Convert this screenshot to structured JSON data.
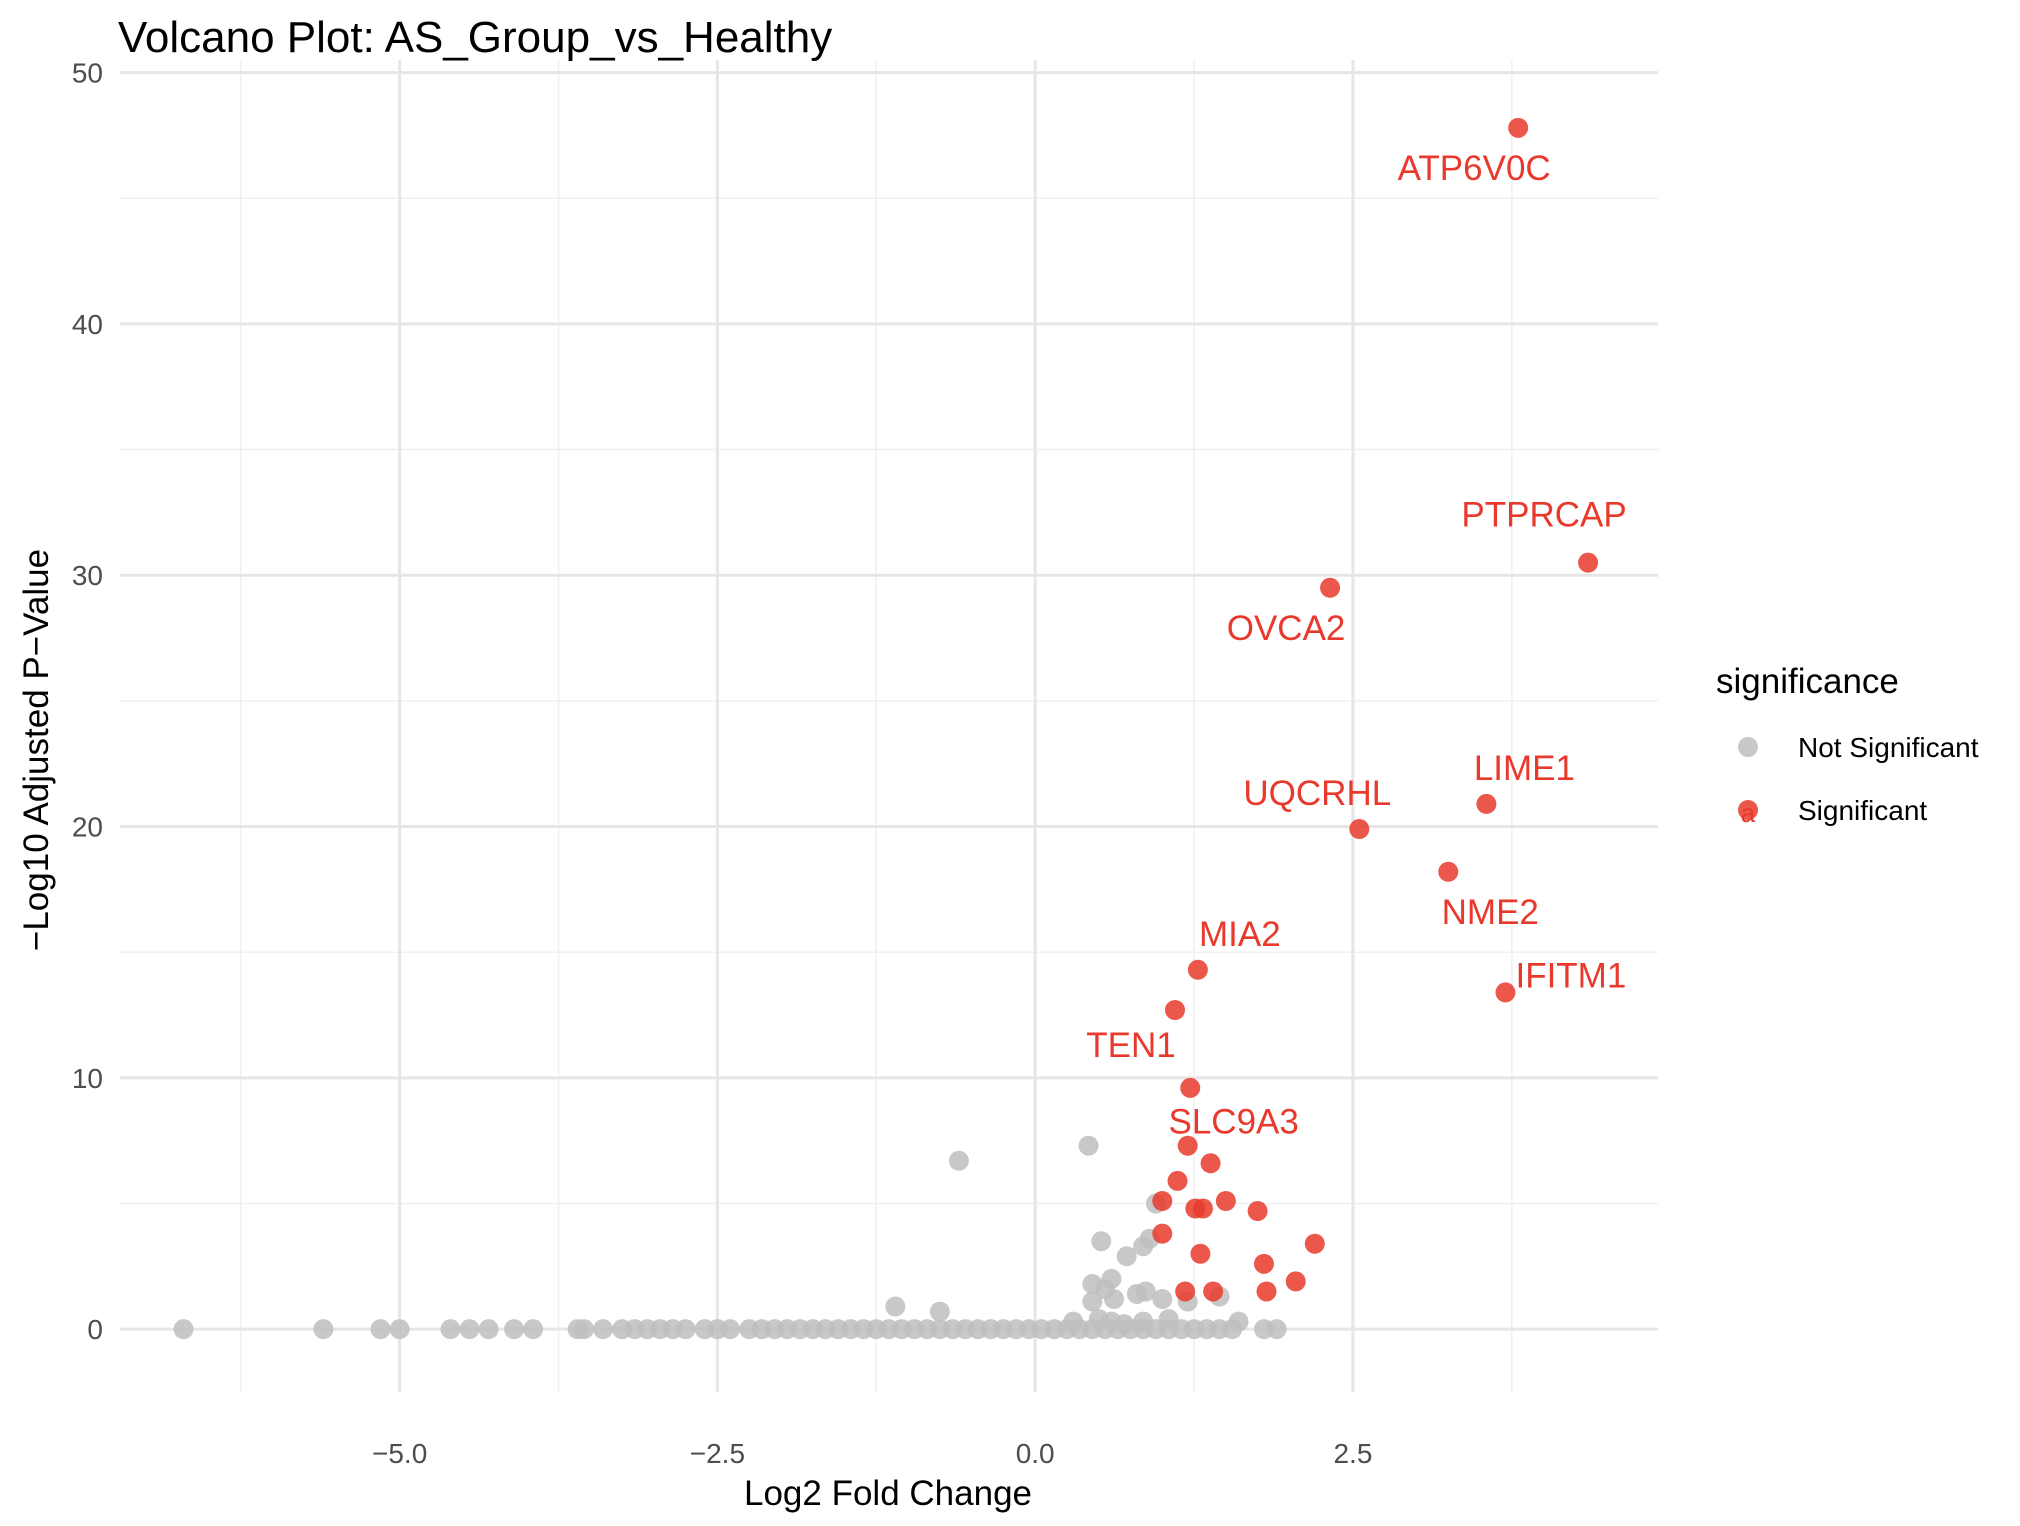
{
  "chart_data": {
    "type": "scatter",
    "title": "Volcano Plot: AS_Group_vs_Healthy",
    "xlabel": "Log2 Fold Change",
    "ylabel": "−Log10 Adjusted P−Value",
    "xlim": [
      -7.2,
      4.9
    ],
    "ylim": [
      -2.5,
      50.5
    ],
    "x_ticks": [
      -5.0,
      -2.5,
      0.0,
      2.5
    ],
    "x_tick_labels": [
      "−5.0",
      "−2.5",
      "0.0",
      "2.5"
    ],
    "y_ticks": [
      0,
      10,
      20,
      30,
      40,
      50
    ],
    "y_tick_labels": [
      "0",
      "10",
      "20",
      "30",
      "40",
      "50"
    ],
    "grid": true,
    "legend": {
      "title": "significance",
      "position": "right",
      "entries": [
        {
          "name": "Not Significant",
          "color": "#bebebe"
        },
        {
          "name": "Significant",
          "color": "#e8392c"
        }
      ]
    },
    "series": [
      {
        "name": "Not Significant",
        "color": "#bebebe",
        "points": [
          [
            -6.7,
            0
          ],
          [
            -5.6,
            0
          ],
          [
            -5.15,
            0
          ],
          [
            -5.0,
            0
          ],
          [
            -4.6,
            0
          ],
          [
            -4.45,
            0
          ],
          [
            -4.3,
            0
          ],
          [
            -4.1,
            0
          ],
          [
            -3.95,
            0
          ],
          [
            -3.6,
            0
          ],
          [
            -3.55,
            0
          ],
          [
            -3.4,
            0
          ],
          [
            -3.25,
            0
          ],
          [
            -3.15,
            0
          ],
          [
            -3.05,
            0
          ],
          [
            -2.95,
            0
          ],
          [
            -2.85,
            0
          ],
          [
            -2.75,
            0
          ],
          [
            -2.6,
            0
          ],
          [
            -2.5,
            0
          ],
          [
            -2.4,
            0
          ],
          [
            -2.25,
            0
          ],
          [
            -2.15,
            0
          ],
          [
            -2.05,
            0
          ],
          [
            -1.95,
            0
          ],
          [
            -1.85,
            0
          ],
          [
            -1.75,
            0
          ],
          [
            -1.65,
            0
          ],
          [
            -1.55,
            0
          ],
          [
            -1.45,
            0
          ],
          [
            -1.35,
            0
          ],
          [
            -1.25,
            0
          ],
          [
            -1.15,
            0
          ],
          [
            -1.05,
            0
          ],
          [
            -0.95,
            0
          ],
          [
            -0.85,
            0
          ],
          [
            -0.75,
            0
          ],
          [
            -0.65,
            0
          ],
          [
            -0.55,
            0
          ],
          [
            -0.45,
            0
          ],
          [
            -0.35,
            0
          ],
          [
            -0.25,
            0
          ],
          [
            -0.15,
            0
          ],
          [
            -0.05,
            0
          ],
          [
            0.05,
            0
          ],
          [
            0.15,
            0
          ],
          [
            0.25,
            0
          ],
          [
            0.35,
            0
          ],
          [
            0.45,
            0
          ],
          [
            0.55,
            0
          ],
          [
            0.65,
            0
          ],
          [
            0.75,
            0
          ],
          [
            0.85,
            0
          ],
          [
            0.95,
            0
          ],
          [
            1.05,
            0
          ],
          [
            1.15,
            0
          ],
          [
            1.25,
            0
          ],
          [
            1.35,
            0
          ],
          [
            1.45,
            0
          ],
          [
            1.55,
            0
          ],
          [
            1.8,
            0
          ],
          [
            1.9,
            0
          ],
          [
            -1.1,
            0.9
          ],
          [
            -0.75,
            0.7
          ],
          [
            0.3,
            0.3
          ],
          [
            0.5,
            0.4
          ],
          [
            0.6,
            0.3
          ],
          [
            0.7,
            0.2
          ],
          [
            0.85,
            0.3
          ],
          [
            1.05,
            0.4
          ],
          [
            1.6,
            0.3
          ],
          [
            0.45,
            1.1
          ],
          [
            0.45,
            1.8
          ],
          [
            0.55,
            1.6
          ],
          [
            0.6,
            2.0
          ],
          [
            0.62,
            1.2
          ],
          [
            0.8,
            1.4
          ],
          [
            0.87,
            1.5
          ],
          [
            1.0,
            1.2
          ],
          [
            1.2,
            1.1
          ],
          [
            1.45,
            1.3
          ],
          [
            0.72,
            2.9
          ],
          [
            0.85,
            3.3
          ],
          [
            0.9,
            3.6
          ],
          [
            0.52,
            3.5
          ],
          [
            0.95,
            5.0
          ],
          [
            -0.6,
            6.7
          ],
          [
            0.42,
            7.3
          ]
        ]
      },
      {
        "name": "Significant",
        "color": "#e8392c",
        "points": [
          [
            3.8,
            47.8
          ],
          [
            4.35,
            30.5
          ],
          [
            2.32,
            29.5
          ],
          [
            3.55,
            20.9
          ],
          [
            2.55,
            19.9
          ],
          [
            3.25,
            18.2
          ],
          [
            3.7,
            13.4
          ],
          [
            1.28,
            14.3
          ],
          [
            1.1,
            12.7
          ],
          [
            1.22,
            9.6
          ],
          [
            1.2,
            7.3
          ],
          [
            1.38,
            6.6
          ],
          [
            1.12,
            5.9
          ],
          [
            1.5,
            5.1
          ],
          [
            1.0,
            5.1
          ],
          [
            1.26,
            4.8
          ],
          [
            1.32,
            4.8
          ],
          [
            1.75,
            4.7
          ],
          [
            1.0,
            3.8
          ],
          [
            2.2,
            3.4
          ],
          [
            1.3,
            3.0
          ],
          [
            1.8,
            2.6
          ],
          [
            2.05,
            1.9
          ],
          [
            1.82,
            1.5
          ],
          [
            1.4,
            1.5
          ],
          [
            1.18,
            1.5
          ]
        ]
      }
    ],
    "annotations": [
      {
        "text": "ATP6V0C",
        "x": 3.8,
        "y": 47.8,
        "color": "#e8392c"
      },
      {
        "text": "PTPRCAP",
        "x": 4.35,
        "y": 30.5,
        "color": "#e8392c"
      },
      {
        "text": "OVCA2",
        "x": 2.32,
        "y": 29.5,
        "color": "#e8392c"
      },
      {
        "text": "LIME1",
        "x": 3.55,
        "y": 20.9,
        "color": "#e8392c"
      },
      {
        "text": "UQCRHL",
        "x": 2.55,
        "y": 19.9,
        "color": "#e8392c"
      },
      {
        "text": "NME2",
        "x": 3.25,
        "y": 18.2,
        "color": "#e8392c"
      },
      {
        "text": "MIA2",
        "x": 1.28,
        "y": 14.3,
        "color": "#e8392c"
      },
      {
        "text": "IFITM1",
        "x": 3.7,
        "y": 13.4,
        "color": "#e8392c"
      },
      {
        "text": "TEN1",
        "x": 1.1,
        "y": 12.7,
        "color": "#e8392c"
      },
      {
        "text": "SLC9A3",
        "x": 1.2,
        "y": 7.3,
        "color": "#e8392c"
      }
    ]
  }
}
